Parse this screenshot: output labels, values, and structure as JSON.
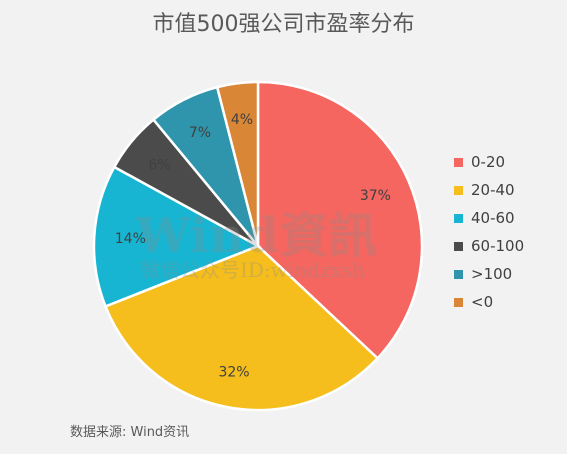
{
  "chart_data": {
    "type": "pie",
    "title": "市值500强公司市盈率分布",
    "categories": [
      "0-20",
      "20-40",
      "40-60",
      "60-100",
      ">100",
      "<0"
    ],
    "values": [
      37,
      32,
      14,
      6,
      7,
      4
    ],
    "labels": [
      "37%",
      "32%",
      "14%",
      "6%",
      "7%",
      "4%"
    ],
    "colors": [
      "#f4665f",
      "#f5be1d",
      "#17b5d1",
      "#4b4b4b",
      "#2f95ad",
      "#d98637"
    ],
    "legend_position": "right"
  },
  "watermark": {
    "main": "Wind資訊",
    "sub": "微信公众号ID:windzxsh"
  },
  "source": "数据来源: Wind资讯"
}
